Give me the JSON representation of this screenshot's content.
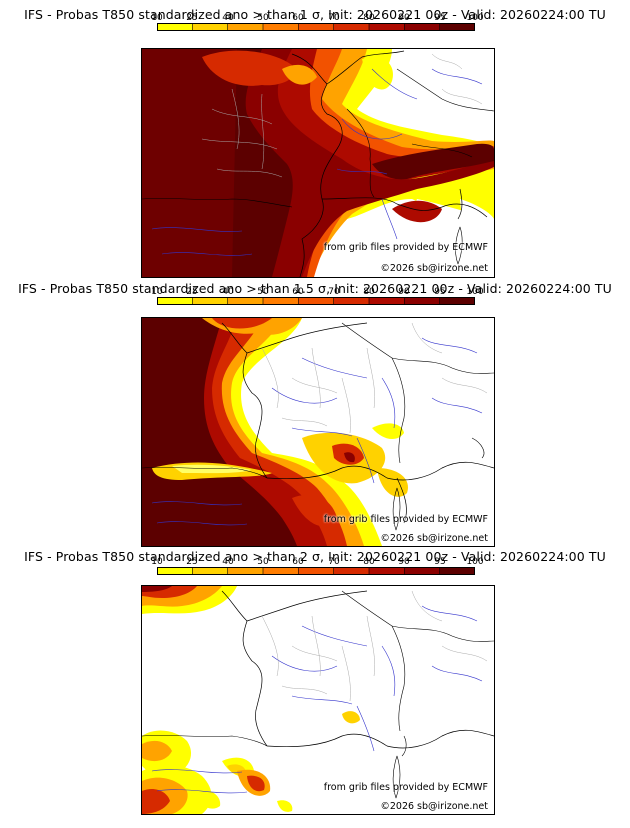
{
  "colorbar": {
    "ticks": [
      "10",
      "25",
      "40",
      "50",
      "60",
      "70",
      "80",
      "90",
      "95",
      "100"
    ],
    "colors": [
      "#ffff00",
      "#ffd200",
      "#ffa300",
      "#ff7d00",
      "#f25200",
      "#d62a00",
      "#ad0a00",
      "#8a0000",
      "#5c0000"
    ]
  },
  "credits": {
    "source": "from grib files provided by ECMWF",
    "copyright": "©2026 sb@irizone.net"
  },
  "panels": [
    {
      "title": "IFS - Probas T850  standardized ano > than 1 σ, Init: 20260221 00z - Valid: 20260224:00 TU",
      "sigma": "1"
    },
    {
      "title": "IFS - Probas T850  standardized ano > than 1.5 σ, Init: 20260221 00z - Valid: 20260224:00 TU",
      "sigma": "1.5"
    },
    {
      "title": "IFS - Probas T850  standardized ano > than 2 σ, Init: 20260221 00z - Valid: 20260224:00 TU",
      "sigma": "2"
    }
  ]
}
